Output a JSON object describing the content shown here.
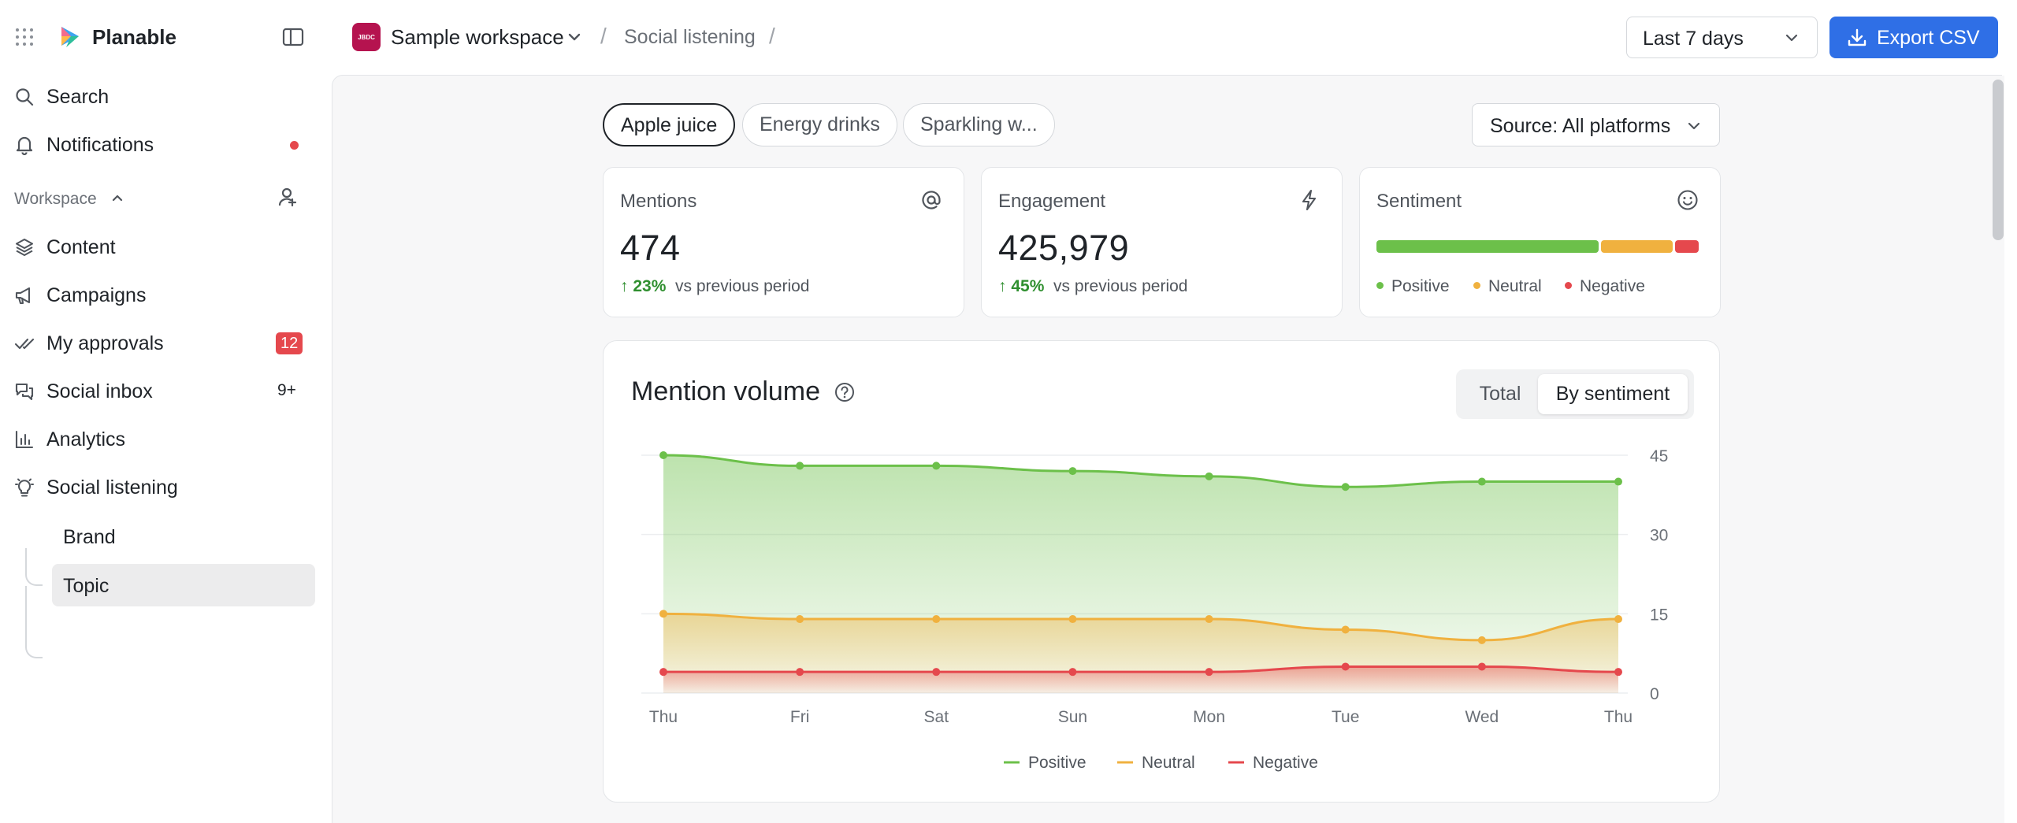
{
  "app": {
    "brand": "Planable",
    "workspace_name": "Sample workspace",
    "workspace_avatar": "JBDC",
    "breadcrumb": [
      "Social listening"
    ]
  },
  "header": {
    "date_range": "Last 7 days",
    "export_label": "Export CSV"
  },
  "sidebar": {
    "search": "Search",
    "notifications": "Notifications",
    "section": "Workspace",
    "items": [
      {
        "label": "Content",
        "icon": "layers-icon"
      },
      {
        "label": "Campaigns",
        "icon": "megaphone-icon"
      },
      {
        "label": "My approvals",
        "icon": "double-check-icon",
        "badge": "12"
      },
      {
        "label": "Social inbox",
        "icon": "chat-icon",
        "badge": "9+"
      },
      {
        "label": "Analytics",
        "icon": "bar-chart-icon"
      },
      {
        "label": "Social listening",
        "icon": "lightbulb-icon"
      }
    ],
    "subitems": [
      {
        "label": "Brand"
      },
      {
        "label": "Topic",
        "active": true
      }
    ]
  },
  "topics": {
    "chips": [
      "Apple juice",
      "Energy drinks",
      "Sparkling w..."
    ],
    "active": "Apple juice",
    "source": "Source: All platforms"
  },
  "metrics": {
    "mentions": {
      "title": "Mentions",
      "value": "474",
      "delta": "23%",
      "delta_text": "vs previous period"
    },
    "engagement": {
      "title": "Engagement",
      "value": "425,979",
      "delta": "45%",
      "delta_text": "vs previous period"
    },
    "sentiment": {
      "title": "Sentiment",
      "shares": {
        "positive": 0.7,
        "neutral": 0.225,
        "negative": 0.075
      },
      "legend": [
        "Positive",
        "Neutral",
        "Negative"
      ]
    }
  },
  "chart_toggle": {
    "total": "Total",
    "by_sentiment": "By sentiment",
    "active": "By sentiment"
  },
  "colors": {
    "positive": "#6cc04a",
    "neutral": "#f0b13f",
    "negative": "#e5484d",
    "accent": "#2f6fe6"
  },
  "chart_data": {
    "type": "area",
    "title": "Mention volume",
    "categories": [
      "Thu",
      "Fri",
      "Sat",
      "Sun",
      "Mon",
      "Tue",
      "Wed",
      "Thu"
    ],
    "ylim": [
      0,
      45
    ],
    "yticks": [
      0,
      15,
      30,
      45
    ],
    "grid": true,
    "legend_position": "bottom",
    "series": [
      {
        "name": "Positive",
        "values": [
          45,
          43,
          43,
          42,
          41,
          39,
          40,
          40
        ]
      },
      {
        "name": "Neutral",
        "values": [
          15,
          14,
          14,
          14,
          14,
          12,
          10,
          14
        ]
      },
      {
        "name": "Negative",
        "values": [
          4,
          4,
          4,
          4,
          4,
          5,
          5,
          4
        ]
      }
    ]
  }
}
